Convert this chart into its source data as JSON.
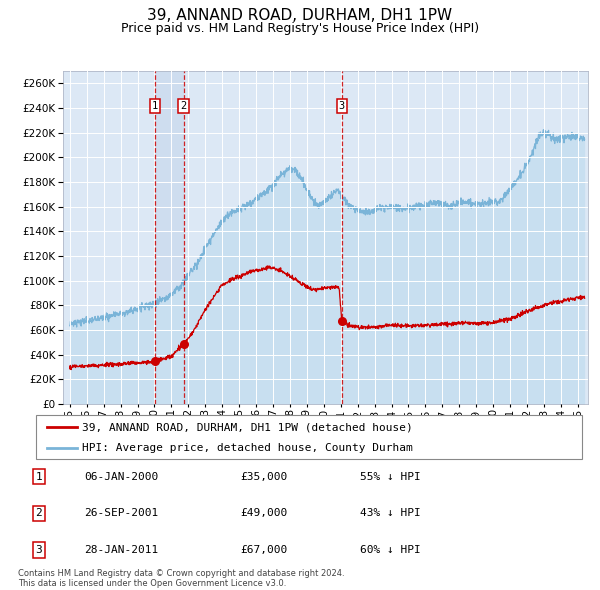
{
  "title": "39, ANNAND ROAD, DURHAM, DH1 1PW",
  "subtitle": "Price paid vs. HM Land Registry's House Price Index (HPI)",
  "title_fontsize": 11,
  "subtitle_fontsize": 9,
  "hpi_color": "#7ab4d8",
  "hpi_fill_color": "#c8dff0",
  "price_color": "#cc0000",
  "sale_marker_color": "#cc0000",
  "vline_color": "#cc0000",
  "plot_bg_color": "#dce8f5",
  "ylim": [
    0,
    270000
  ],
  "ytick_step": 20000,
  "xlim_left": 1994.6,
  "xlim_right": 2025.6,
  "sales": [
    {
      "label": 1,
      "date_num": 2000.03,
      "price": 35000
    },
    {
      "label": 2,
      "date_num": 2001.73,
      "price": 49000
    },
    {
      "label": 3,
      "date_num": 2011.07,
      "price": 67000
    }
  ],
  "legend_entries": [
    "39, ANNAND ROAD, DURHAM, DH1 1PW (detached house)",
    "HPI: Average price, detached house, County Durham"
  ],
  "table_rows": [
    {
      "num": 1,
      "date": "06-JAN-2000",
      "price": "£35,000",
      "pct": "55% ↓ HPI"
    },
    {
      "num": 2,
      "date": "26-SEP-2001",
      "price": "£49,000",
      "pct": "43% ↓ HPI"
    },
    {
      "num": 3,
      "date": "28-JAN-2011",
      "price": "£67,000",
      "pct": "60% ↓ HPI"
    }
  ],
  "footer": "Contains HM Land Registry data © Crown copyright and database right 2024.\nThis data is licensed under the Open Government Licence v3.0.",
  "grid_color": "#ffffff",
  "tick_label_fontsize": 7.5
}
